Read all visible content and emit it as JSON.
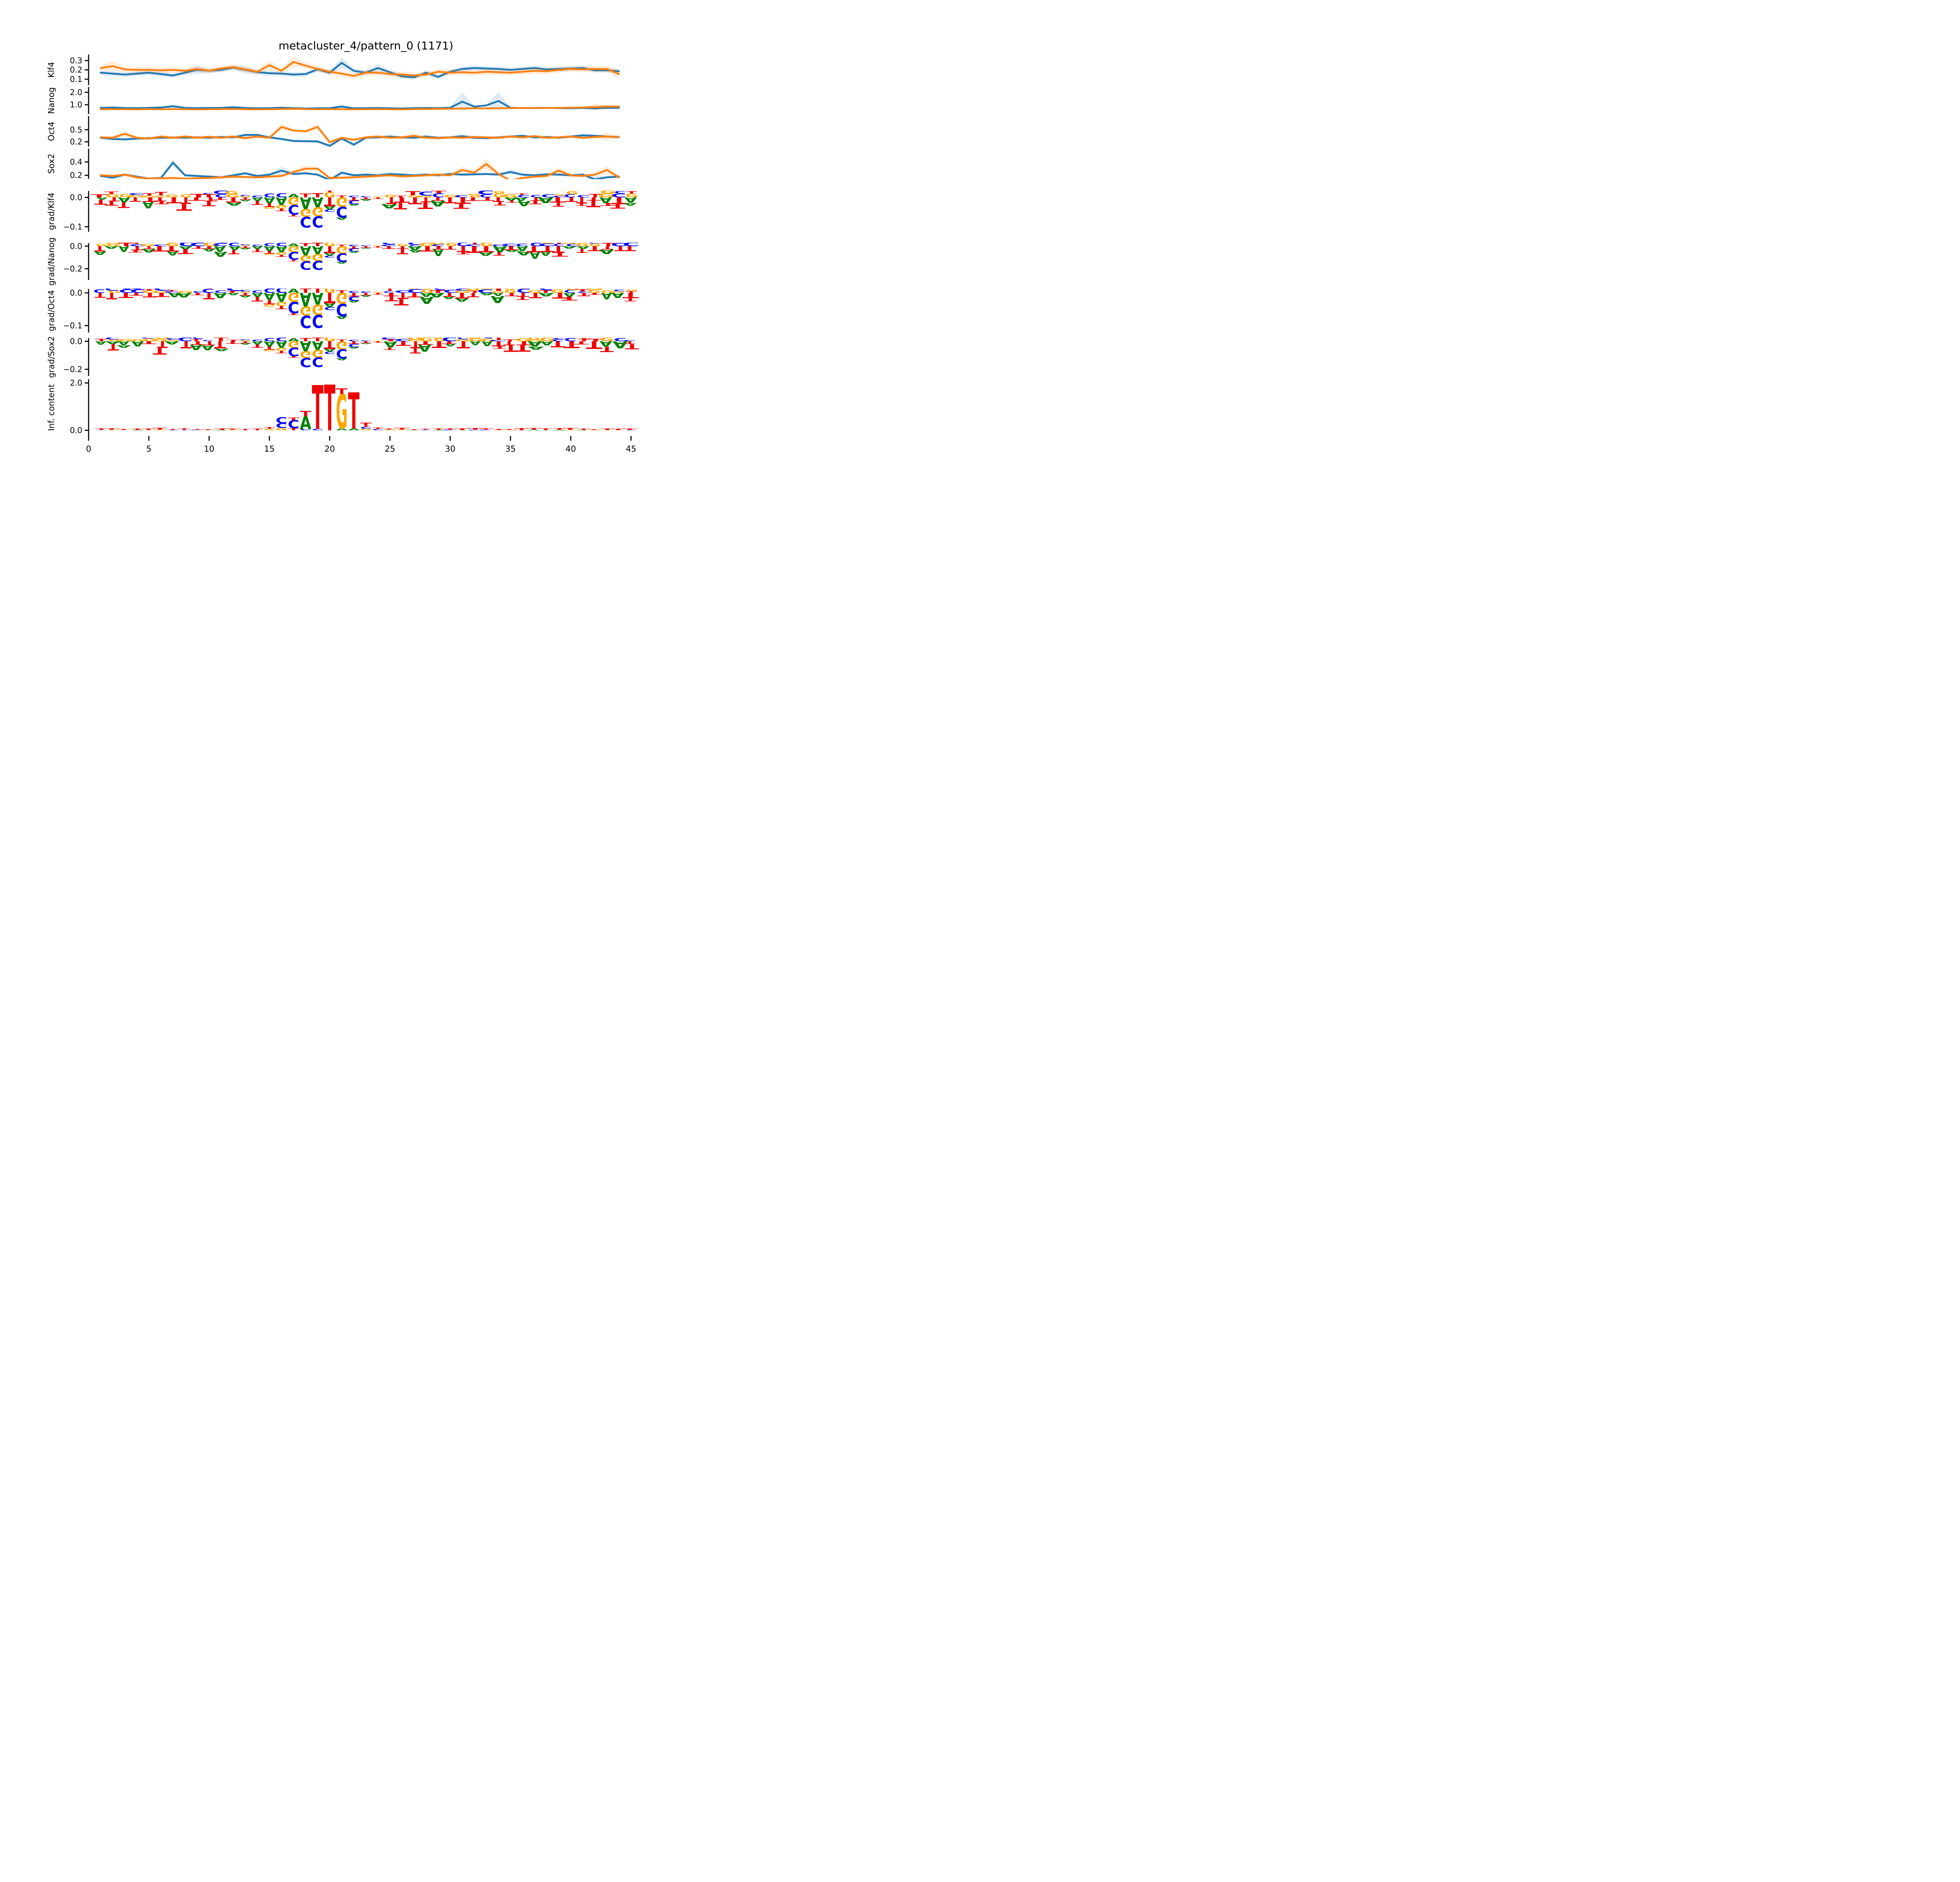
{
  "title": "metacluster_4/pattern_0 (1171)",
  "colors": {
    "blue": "#1f77b4",
    "orange": "#ff7f0e",
    "band_blue": "#1f77b4",
    "band_orange": "#ff7f0e",
    "A": "#008000",
    "C": "#0208f0",
    "G": "#ffa500",
    "T": "#ef0000",
    "axis": "#000000"
  },
  "chart_data": {
    "type": "line",
    "x": {
      "start": 1,
      "end": 44,
      "xlim": [
        0,
        46
      ],
      "ticks": [
        0,
        5,
        10,
        15,
        20,
        25,
        30,
        35,
        40,
        45
      ],
      "tick_labels": [
        "0",
        "5",
        "10",
        "15",
        "20",
        "25",
        "30",
        "35",
        "40",
        "45"
      ]
    },
    "line_plots": [
      {
        "id": "klf4",
        "ylabel": "Klf4",
        "ytick_labels": [
          "0.3",
          "0.2",
          "0.1"
        ],
        "ytick_vals": [
          0.3,
          0.2,
          0.1
        ],
        "ylim": [
          0.037,
          0.365
        ],
        "series": [
          {
            "key": "blue",
            "name": "task-0",
            "values": [
              0.17,
              0.16,
              0.15,
              0.16,
              0.17,
              0.155,
              0.14,
              0.17,
              0.2,
              0.19,
              0.2,
              0.225,
              0.2,
              0.175,
              0.165,
              0.16,
              0.15,
              0.155,
              0.205,
              0.17,
              0.275,
              0.19,
              0.17,
              0.22,
              0.175,
              0.13,
              0.12,
              0.17,
              0.125,
              0.18,
              0.21,
              0.22,
              0.215,
              0.21,
              0.2,
              0.21,
              0.22,
              0.205,
              0.21,
              0.215,
              0.22,
              0.195,
              0.195,
              0.185
            ],
            "band_base": 0.025,
            "band_spikes": {
              "9": 0.045,
              "21": 0.055,
              "24": 0.045,
              "13": 0.04
            }
          },
          {
            "key": "orange",
            "name": "task-1",
            "values": [
              0.22,
              0.24,
              0.205,
              0.2,
              0.2,
              0.195,
              0.2,
              0.19,
              0.21,
              0.19,
              0.215,
              0.23,
              0.205,
              0.18,
              0.25,
              0.19,
              0.285,
              0.245,
              0.21,
              0.18,
              0.16,
              0.135,
              0.17,
              0.17,
              0.155,
              0.15,
              0.14,
              0.15,
              0.18,
              0.17,
              0.175,
              0.17,
              0.18,
              0.175,
              0.17,
              0.18,
              0.19,
              0.185,
              0.2,
              0.21,
              0.205,
              0.21,
              0.21,
              0.155
            ],
            "band_base": 0.03,
            "band_spikes": {
              "2": 0.05,
              "15": 0.05,
              "17": 0.055,
              "44": 0.05
            }
          }
        ]
      },
      {
        "id": "nanog",
        "ylabel": "Nanog",
        "ytick_labels": [
          "2.0",
          "1.0"
        ],
        "ytick_vals": [
          2.0,
          1.0
        ],
        "ylim": [
          0.25,
          2.42
        ],
        "series": [
          {
            "key": "blue",
            "name": "task-0",
            "values": [
              0.75,
              0.78,
              0.74,
              0.73,
              0.75,
              0.78,
              0.88,
              0.75,
              0.73,
              0.74,
              0.75,
              0.8,
              0.74,
              0.72,
              0.73,
              0.76,
              0.73,
              0.7,
              0.72,
              0.73,
              0.85,
              0.72,
              0.73,
              0.74,
              0.72,
              0.7,
              0.73,
              0.74,
              0.73,
              0.76,
              1.25,
              0.85,
              0.95,
              1.3,
              0.76,
              0.73,
              0.74,
              0.75,
              0.73,
              0.72,
              0.74,
              0.7,
              0.74,
              0.75
            ],
            "band_base": 0.07,
            "band_spikes": {
              "7": 0.15,
              "12": 0.12,
              "21": 0.16,
              "31": 0.75,
              "34": 0.72,
              "44": 0.12
            }
          },
          {
            "key": "orange",
            "name": "task-1",
            "values": [
              0.64,
              0.65,
              0.64,
              0.63,
              0.65,
              0.64,
              0.65,
              0.64,
              0.63,
              0.64,
              0.65,
              0.66,
              0.64,
              0.63,
              0.64,
              0.66,
              0.67,
              0.65,
              0.64,
              0.65,
              0.64,
              0.63,
              0.64,
              0.65,
              0.64,
              0.63,
              0.65,
              0.66,
              0.67,
              0.68,
              0.7,
              0.72,
              0.71,
              0.72,
              0.73,
              0.74,
              0.73,
              0.74,
              0.75,
              0.76,
              0.78,
              0.82,
              0.85,
              0.85
            ],
            "band_base": 0.05,
            "band_spikes": {
              "42": 0.25,
              "43": 0.15,
              "44": 0.15
            }
          }
        ]
      },
      {
        "id": "oct4",
        "ylabel": "Oct4",
        "ytick_labels": [
          "0.5",
          "0.2"
        ],
        "ytick_vals": [
          0.5,
          0.2
        ],
        "ylim": [
          0.08,
          0.84
        ],
        "series": [
          {
            "key": "blue",
            "name": "task-0",
            "values": [
              0.3,
              0.27,
              0.26,
              0.28,
              0.29,
              0.3,
              0.305,
              0.3,
              0.31,
              0.3,
              0.32,
              0.31,
              0.37,
              0.37,
              0.31,
              0.27,
              0.22,
              0.215,
              0.21,
              0.1,
              0.28,
              0.13,
              0.3,
              0.31,
              0.33,
              0.31,
              0.3,
              0.33,
              0.3,
              0.31,
              0.34,
              0.3,
              0.29,
              0.31,
              0.33,
              0.35,
              0.31,
              0.32,
              0.3,
              0.33,
              0.36,
              0.35,
              0.33,
              0.315
            ],
            "band_base": 0.035,
            "band_spikes": {
              "13": 0.06,
              "20": 0.05,
              "22": 0.05,
              "31": 0.05,
              "41": 0.05
            }
          },
          {
            "key": "orange",
            "name": "task-1",
            "values": [
              0.31,
              0.3,
              0.4,
              0.3,
              0.28,
              0.33,
              0.3,
              0.33,
              0.3,
              0.325,
              0.3,
              0.33,
              0.29,
              0.33,
              0.3,
              0.57,
              0.48,
              0.46,
              0.57,
              0.19,
              0.3,
              0.25,
              0.31,
              0.33,
              0.3,
              0.31,
              0.35,
              0.3,
              0.29,
              0.31,
              0.3,
              0.32,
              0.31,
              0.3,
              0.33,
              0.31,
              0.34,
              0.3,
              0.31,
              0.33,
              0.3,
              0.32,
              0.33,
              0.32
            ],
            "band_base": 0.04,
            "band_spikes": {
              "3": 0.07,
              "16": 0.08,
              "19": 0.08,
              "27": 0.06,
              "43": 0.09
            }
          }
        ]
      },
      {
        "id": "sox2",
        "ylabel": "Sox2",
        "ytick_labels": [
          "0.4",
          "0.2"
        ],
        "ytick_vals": [
          0.4,
          0.2
        ],
        "ylim": [
          0.148,
          0.6
        ],
        "series": [
          {
            "key": "blue",
            "name": "task-0",
            "values": [
              0.19,
              0.165,
              0.21,
              0.18,
              0.15,
              0.16,
              0.39,
              0.2,
              0.19,
              0.18,
              0.17,
              0.2,
              0.23,
              0.19,
              0.21,
              0.27,
              0.22,
              0.23,
              0.21,
              0.13,
              0.24,
              0.2,
              0.21,
              0.2,
              0.22,
              0.21,
              0.2,
              0.21,
              0.2,
              0.22,
              0.21,
              0.215,
              0.22,
              0.21,
              0.25,
              0.21,
              0.2,
              0.215,
              0.21,
              0.2,
              0.21,
              0.14,
              0.17,
              0.18
            ],
            "band_base": 0.022,
            "band_spikes": {
              "7": 0.05,
              "16": 0.06,
              "21": 0.04,
              "35": 0.04,
              "42": 0.05
            }
          },
          {
            "key": "orange",
            "name": "task-1",
            "values": [
              0.2,
              0.19,
              0.21,
              0.17,
              0.15,
              0.155,
              0.16,
              0.15,
              0.155,
              0.16,
              0.17,
              0.18,
              0.175,
              0.17,
              0.18,
              0.19,
              0.25,
              0.3,
              0.3,
              0.16,
              0.165,
              0.17,
              0.18,
              0.19,
              0.2,
              0.185,
              0.19,
              0.2,
              0.21,
              0.2,
              0.28,
              0.24,
              0.37,
              0.22,
              0.12,
              0.16,
              0.18,
              0.19,
              0.27,
              0.2,
              0.19,
              0.21,
              0.28,
              0.17
            ],
            "band_base": 0.022,
            "band_spikes": {
              "18": 0.05,
              "31": 0.05,
              "33": 0.08,
              "39": 0.05,
              "43": 0.06
            }
          }
        ]
      }
    ],
    "logo_plots": [
      {
        "id": "grad-klf4",
        "ylabel": "grad/Klf4",
        "ytick_labels": [
          "0.0",
          "−0.1"
        ],
        "ytick_vals": [
          0.0,
          -0.1
        ],
        "ylim": [
          -0.117,
          0.022
        ],
        "motif_scale": 1.0,
        "noise": {
          "up": 0.012,
          "down": 0.02,
          "seed": 7
        }
      },
      {
        "id": "grad-nanog",
        "ylabel": "grad/Nanog",
        "ytick_labels": [
          "0.0",
          "−0.2"
        ],
        "ytick_vals": [
          0.0,
          -0.2
        ],
        "ylim": [
          -0.3,
          0.027
        ],
        "motif_scale": 2.05,
        "noise": {
          "up": 0.03,
          "down": 0.05,
          "seed": 11
        }
      },
      {
        "id": "grad-oct4",
        "ylabel": "grad/Oct4",
        "ytick_labels": [
          "0.0",
          "−0.1"
        ],
        "ytick_vals": [
          0.0,
          -0.1
        ],
        "ylim": [
          -0.121,
          0.012
        ],
        "motif_scale": 1.05,
        "noise": {
          "up": 0.011,
          "down": 0.018,
          "seed": 13
        }
      },
      {
        "id": "grad-sox2",
        "ylabel": "grad/Sox2",
        "ytick_labels": [
          "0.0",
          "−0.2"
        ],
        "ytick_vals": [
          0.0,
          -0.2
        ],
        "ylim": [
          -0.248,
          0.024
        ],
        "motif_scale": 1.8,
        "noise": {
          "up": 0.025,
          "down": 0.045,
          "seed": 17
        }
      }
    ],
    "grad_motif": [
      {
        "x": 13,
        "up": [
          [
            "G",
            0.004
          ],
          [
            "C",
            0.004
          ]
        ],
        "down": [
          [
            "T",
            0.008
          ],
          [
            "A",
            0.005
          ]
        ]
      },
      {
        "x": 14,
        "up": [
          [
            "C",
            0.007
          ]
        ],
        "down": [
          [
            "A",
            0.012
          ],
          [
            "T",
            0.013
          ]
        ]
      },
      {
        "x": 15,
        "up": [
          [
            "C",
            0.013
          ]
        ],
        "down": [
          [
            "A",
            0.021
          ],
          [
            "T",
            0.012
          ],
          [
            "G",
            0.007
          ]
        ]
      },
      {
        "x": 16,
        "up": [
          [
            "C",
            0.015
          ]
        ],
        "down": [
          [
            "A",
            0.026
          ],
          [
            "G",
            0.012
          ],
          [
            "T",
            0.009
          ]
        ]
      },
      {
        "x": 17,
        "up": [
          [
            "A",
            0.012
          ]
        ],
        "down": [
          [
            "G",
            0.026
          ],
          [
            "C",
            0.033
          ],
          [
            "T",
            0.006
          ]
        ]
      },
      {
        "x": 18,
        "up": [
          [
            "T",
            0.013
          ]
        ],
        "down": [
          [
            "A",
            0.04
          ],
          [
            "G",
            0.026
          ],
          [
            "C",
            0.036
          ]
        ]
      },
      {
        "x": 19,
        "up": [
          [
            "T",
            0.015
          ]
        ],
        "down": [
          [
            "A",
            0.034
          ],
          [
            "G",
            0.03
          ],
          [
            "C",
            0.038
          ]
        ]
      },
      {
        "x": 20,
        "up": [
          [
            "G",
            0.018
          ],
          [
            "T",
            0.006
          ]
        ],
        "down": [
          [
            "T",
            0.03
          ],
          [
            "A",
            0.011
          ],
          [
            "C",
            0.009
          ]
        ]
      },
      {
        "x": 21,
        "up": [
          [
            "T",
            0.007
          ]
        ],
        "down": [
          [
            "G",
            0.032
          ],
          [
            "C",
            0.036
          ],
          [
            "A",
            0.008
          ]
        ]
      },
      {
        "x": 22,
        "up": [
          [
            "C",
            0.006
          ]
        ],
        "down": [
          [
            "T",
            0.01
          ],
          [
            "C",
            0.013
          ],
          [
            "A",
            0.005
          ]
        ]
      },
      {
        "x": 23,
        "up": [
          [
            "C",
            0.004
          ]
        ],
        "down": [
          [
            "T",
            0.007
          ],
          [
            "A",
            0.004
          ]
        ]
      },
      {
        "x": 24,
        "up": [
          [
            "G",
            0.003
          ]
        ],
        "down": [
          [
            "T",
            0.005
          ]
        ]
      }
    ],
    "ic_plot": {
      "id": "inf-content",
      "ylabel": "Inf. content",
      "ytick_labels": [
        "2.0",
        "0.0"
      ],
      "ytick_vals": [
        2.0,
        0.0
      ],
      "ylim": [
        -0.24,
        2.16
      ],
      "noise": {
        "t": 0.06,
        "sub": 0.025,
        "seed": 23
      },
      "stacks": [
        {
          "x": 13,
          "up": [
            [
              "T",
              0.05
            ]
          ]
        },
        {
          "x": 14,
          "up": [
            [
              "T",
              0.07
            ]
          ]
        },
        {
          "x": 15,
          "up": [
            [
              "G",
              0.06
            ],
            [
              "T",
              0.07
            ]
          ]
        },
        {
          "x": 16,
          "up": [
            [
              "G",
              0.1
            ],
            [
              "C",
              0.2
            ],
            [
              "C",
              0.26
            ]
          ]
        },
        {
          "x": 17,
          "up": [
            [
              "T",
              0.08
            ],
            [
              "C",
              0.34
            ],
            [
              "T",
              0.12
            ]
          ]
        },
        {
          "x": 18,
          "up": [
            [
              "C",
              0.05
            ],
            [
              "A",
              0.55
            ],
            [
              "T",
              0.22
            ]
          ]
        },
        {
          "x": 19,
          "up": [
            [
              "C",
              0.06
            ],
            [
              "T",
              1.85
            ]
          ]
        },
        {
          "x": 20,
          "up": [
            [
              "T",
              1.93
            ]
          ]
        },
        {
          "x": 21,
          "up": [
            [
              "A",
              0.08
            ],
            [
              "G",
              1.45
            ],
            [
              "T",
              0.24
            ]
          ]
        },
        {
          "x": 22,
          "up": [
            [
              "A",
              0.08
            ],
            [
              "T",
              1.52
            ]
          ]
        },
        {
          "x": 23,
          "up": [
            [
              "G",
              0.07
            ],
            [
              "C",
              0.09
            ],
            [
              "T",
              0.16
            ]
          ]
        },
        {
          "x": 24,
          "up": [
            [
              "C",
              0.05
            ],
            [
              "T",
              0.06
            ]
          ]
        }
      ]
    }
  }
}
